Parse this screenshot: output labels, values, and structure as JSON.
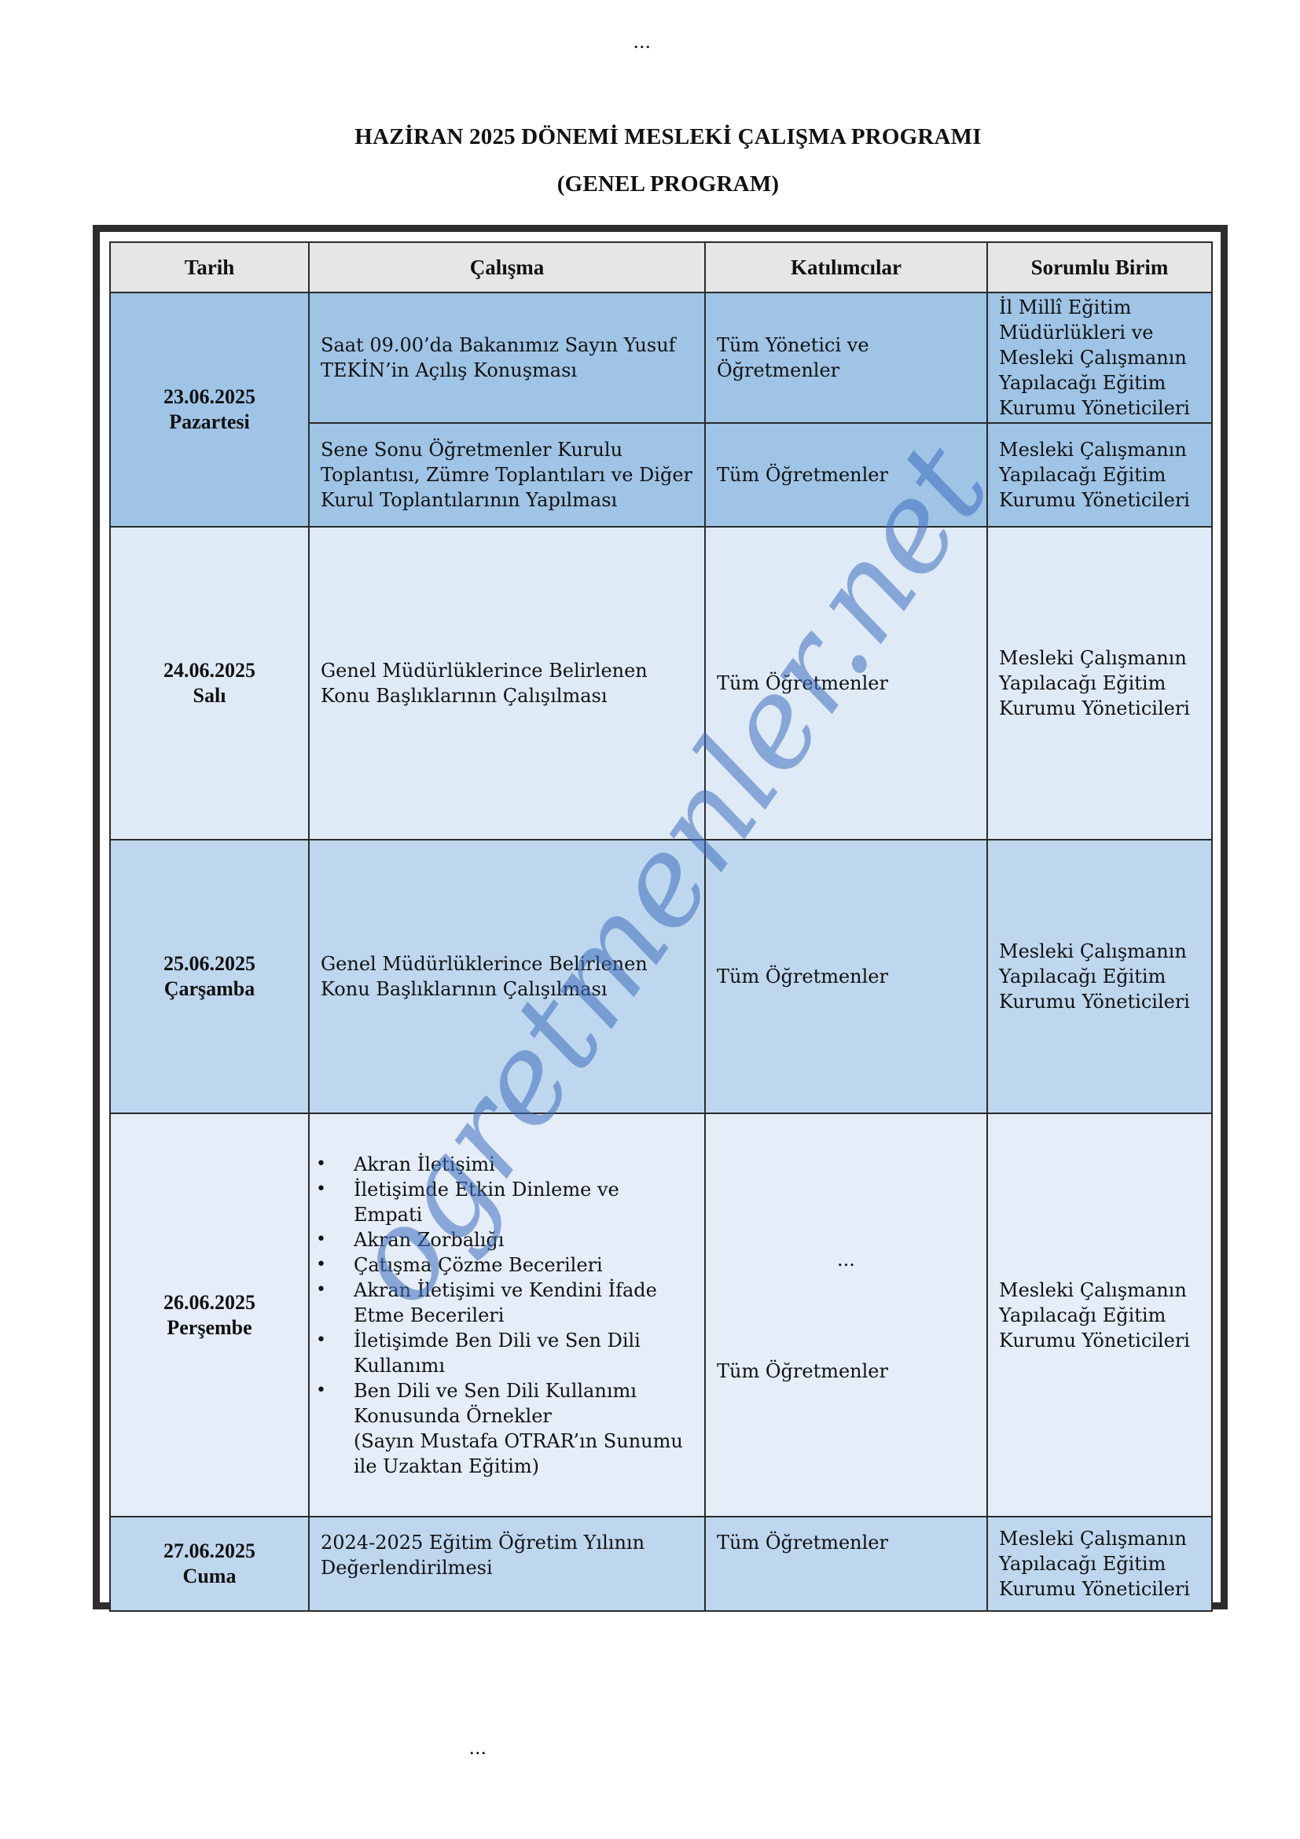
{
  "page": {
    "dots_top": "...",
    "dots_bottom": "...",
    "title": "HAZİRAN 2025 DÖNEMİ MESLEKİ ÇALIŞMA PROGRAMI",
    "subtitle": "(GENEL PROGRAM)",
    "watermark": "ogretmenler.net"
  },
  "table": {
    "headers": [
      "Tarih",
      "Çalışma",
      "Katılımcılar",
      "Sorumlu Birim"
    ],
    "rows": [
      {
        "date": "23.06.2025",
        "day": "Pazartesi",
        "items": [
          {
            "work": "Saat 09.00’da Bakanımız Sayın Yusuf TEKİN’in Açılış Konuşması",
            "participants": "Tüm Yönetici ve Öğretmenler",
            "responsible": "İl Millî Eğitim Müdürlükleri ve Mesleki Çalışmanın Yapılacağı Eğitim Kurumu Yöneticileri"
          },
          {
            "work": "Sene Sonu Öğretmenler Kurulu Toplantısı, Zümre Toplantıları ve Diğer Kurul Toplantılarının Yapılması",
            "participants": "Tüm Öğretmenler",
            "responsible": "Mesleki Çalışmanın Yapılacağı Eğitim Kurumu Yöneticileri"
          }
        ]
      },
      {
        "date": "24.06.2025",
        "day": "Salı",
        "work": "Genel Müdürlüklerince Belirlenen Konu Başlıklarının Çalışılması",
        "participants": "Tüm Öğretmenler",
        "responsible": "Mesleki Çalışmanın Yapılacağı Eğitim Kurumu Yöneticileri"
      },
      {
        "date": "25.06.2025",
        "day": "Çarşamba",
        "work": "Genel Müdürlüklerince Belirlenen Konu Başlıklarının Çalışılması",
        "participants": "Tüm Öğretmenler",
        "responsible": "Mesleki Çalışmanın Yapılacağı Eğitim Kurumu Yöneticileri"
      },
      {
        "date": "26.06.2025",
        "day": "Perşembe",
        "topics": [
          "Akran İletişimi",
          "İletişimde Etkin Dinleme ve Empati",
          "Akran Zorbalığı",
          "Çatışma Çözme Becerileri",
          "Akran İletişimi ve Kendini İfade Etme Becerileri",
          "İletişimde Ben Dili ve Sen Dili Kullanımı",
          "Ben Dili ve Sen Dili Kullanımı Konusunda Örnekler"
        ],
        "note": "(Sayın Mustafa OTRAR’ın Sunumu ile Uzaktan Eğitim)",
        "participants_extra": "...",
        "participants": "Tüm Öğretmenler",
        "responsible": "Mesleki Çalışmanın Yapılacağı Eğitim Kurumu Yöneticileri"
      },
      {
        "date": "27.06.2025",
        "day": "Cuma",
        "work": "2024-2025 Eğitim Öğretim Yılının Değerlendirilmesi",
        "participants": "Tüm Öğretmenler",
        "responsible": "Mesleki Çalışmanın Yapılacağı Eğitim Kurumu Yöneticileri"
      }
    ]
  }
}
